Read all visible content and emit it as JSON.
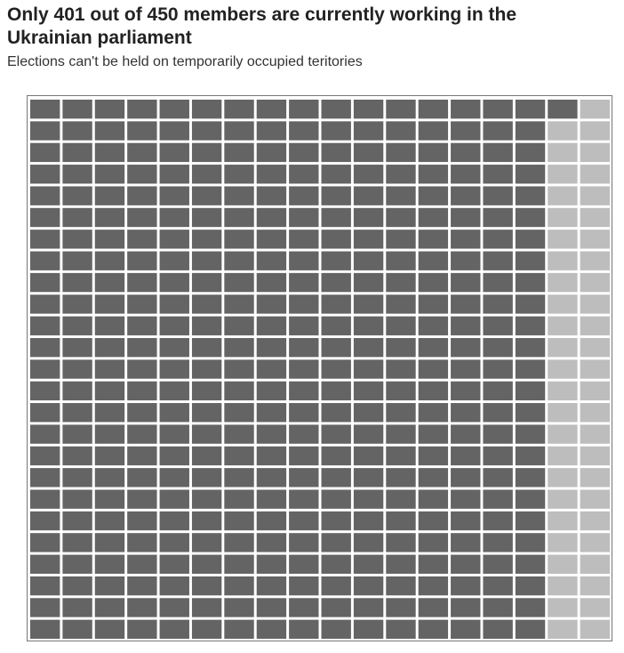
{
  "header": {
    "title": "Only 401 out of 450 members are currently working in the Ukrainian parliament",
    "subtitle": "Elections can't be held on temporarily occupied teritories"
  },
  "chart_data": {
    "type": "waffle",
    "title": "Only 401 out of 450 members are currently working in the Ukrainian parliament",
    "subtitle": "Elections can't be held on temporarily occupied teritories",
    "total": 450,
    "columns": 18,
    "rows": 25,
    "fill_order": "column-major, top-to-bottom then left-to-right",
    "series": [
      {
        "value": 401,
        "color": "#646464"
      },
      {
        "value": 49,
        "color": "#bdbdbd"
      }
    ],
    "grid": false,
    "legend": "none"
  }
}
